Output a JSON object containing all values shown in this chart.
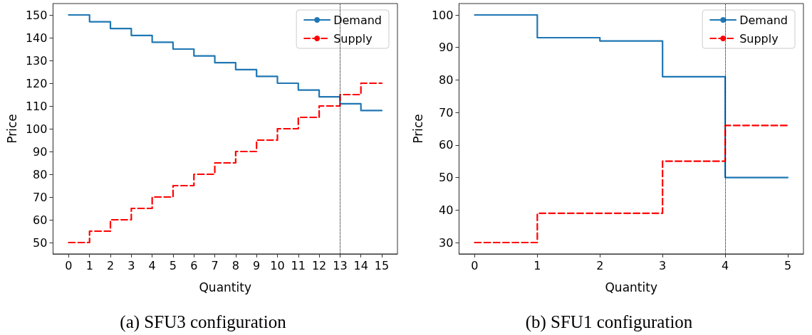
{
  "chart_data": [
    {
      "type": "step",
      "xlabel": "Quantity",
      "ylabel": "Price",
      "annotations": [
        "(a) SFU3 configuration"
      ],
      "x": [
        0,
        1,
        2,
        3,
        4,
        5,
        6,
        7,
        8,
        9,
        10,
        11,
        12,
        13,
        14,
        15
      ],
      "series": [
        {
          "name": "Demand",
          "color": "#1f77b4",
          "line_style": "solid",
          "values": [
            150,
            147,
            144,
            141,
            138,
            135,
            132,
            129,
            126,
            123,
            120,
            117,
            114,
            111,
            108,
            108
          ]
        },
        {
          "name": "Supply",
          "color": "#ff0000",
          "line_style": "dashed",
          "values": [
            50,
            55,
            60,
            65,
            70,
            75,
            80,
            85,
            90,
            95,
            100,
            105,
            110,
            115,
            120,
            120
          ]
        }
      ],
      "xlim": [
        -0.75,
        15.75
      ],
      "xticks": [
        0,
        1,
        2,
        3,
        4,
        5,
        6,
        7,
        8,
        9,
        10,
        11,
        12,
        13,
        14,
        15
      ],
      "ylim": [
        45,
        155
      ],
      "yticks": [
        50,
        60,
        70,
        80,
        90,
        100,
        110,
        120,
        130,
        140,
        150
      ],
      "ref_lines": [
        {
          "axis": "x",
          "value": 13,
          "color": "#000000",
          "line_style": "dotted"
        }
      ],
      "legend": "top right",
      "grid": false,
      "marker": "none"
    },
    {
      "type": "step",
      "xlabel": "Quantity",
      "ylabel": "Price",
      "annotations": [
        "(b) SFU1 configuration"
      ],
      "x": [
        0,
        1,
        2,
        3,
        4,
        5
      ],
      "series": [
        {
          "name": "Demand",
          "color": "#1f77b4",
          "line_style": "solid",
          "values": [
            100,
            93,
            92,
            81,
            50,
            50
          ]
        },
        {
          "name": "Supply",
          "color": "#ff0000",
          "line_style": "dashed",
          "values": [
            30,
            39,
            39,
            55,
            66,
            66
          ]
        }
      ],
      "xlim": [
        -0.25,
        5.25
      ],
      "xticks": [
        0,
        1,
        2,
        3,
        4,
        5
      ],
      "ylim": [
        26.5,
        103.5
      ],
      "yticks": [
        30,
        40,
        50,
        60,
        70,
        80,
        90,
        100
      ],
      "ref_lines": [
        {
          "axis": "x",
          "value": 4,
          "color": "#000000",
          "line_style": "dotted"
        }
      ],
      "legend": "top right",
      "grid": false,
      "marker": "none"
    }
  ]
}
